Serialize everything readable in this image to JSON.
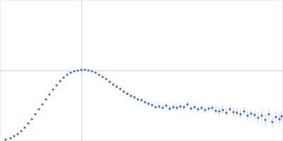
{
  "chart_data": {
    "type": "scatter",
    "color": "#3a66b5",
    "marker": "circle",
    "grid": true,
    "tick_labels": false,
    "xlim": [
      0,
      400
    ],
    "ylim": [
      0,
      200
    ],
    "xticks": [
      115
    ],
    "yticks": [
      100
    ],
    "x": [
      8,
      15,
      20,
      25,
      30,
      35,
      40,
      45,
      50,
      55,
      60,
      65,
      70,
      75,
      80,
      85,
      90,
      95,
      100,
      105,
      110,
      115,
      120,
      125,
      130,
      135,
      140,
      145,
      150,
      155,
      160,
      165,
      170,
      175,
      180,
      185,
      190,
      195,
      200,
      205,
      210,
      215,
      220,
      225,
      230,
      235,
      240,
      245,
      250,
      255,
      260,
      265,
      270,
      275,
      280,
      285,
      290,
      295,
      300,
      305,
      310,
      315,
      320,
      325,
      330,
      335,
      340,
      345,
      350,
      355,
      360,
      365,
      370,
      375,
      380,
      385,
      390,
      395,
      398
    ],
    "values": [
      2,
      4,
      7,
      10,
      14,
      19,
      25,
      31,
      38,
      45,
      52,
      59,
      66,
      73,
      79,
      85,
      90,
      94,
      97,
      99,
      100,
      101,
      101,
      100,
      99,
      97,
      94,
      91,
      88,
      84,
      80,
      77,
      74,
      70,
      67,
      64,
      62,
      59,
      58,
      55,
      53,
      51,
      48,
      49,
      47,
      50,
      46,
      48,
      47,
      49,
      48,
      52,
      46,
      48,
      45,
      47,
      44,
      46,
      47,
      43,
      42,
      44,
      40,
      45,
      41,
      40,
      38,
      42,
      36,
      39,
      37,
      33,
      36,
      30,
      38,
      27,
      34,
      31,
      35
    ],
    "errors": [
      0.5,
      0.5,
      0.5,
      0.5,
      0.5,
      0.5,
      0.5,
      0.5,
      0.5,
      0.5,
      0.5,
      0.5,
      0.5,
      0.5,
      0.5,
      0.5,
      0.5,
      0.5,
      0.5,
      1,
      1,
      1,
      1,
      1,
      1,
      1,
      1,
      1,
      1,
      1,
      1,
      2,
      2,
      2,
      2,
      2,
      2,
      2,
      2,
      2,
      2,
      2,
      2,
      4,
      4,
      4,
      4,
      4,
      4,
      4,
      4,
      4,
      4,
      4,
      4,
      4,
      4,
      4,
      4,
      6,
      6,
      6,
      6,
      6,
      6,
      6,
      6,
      6,
      6,
      6,
      6,
      8,
      8,
      8,
      8,
      8,
      8,
      8,
      8
    ]
  }
}
